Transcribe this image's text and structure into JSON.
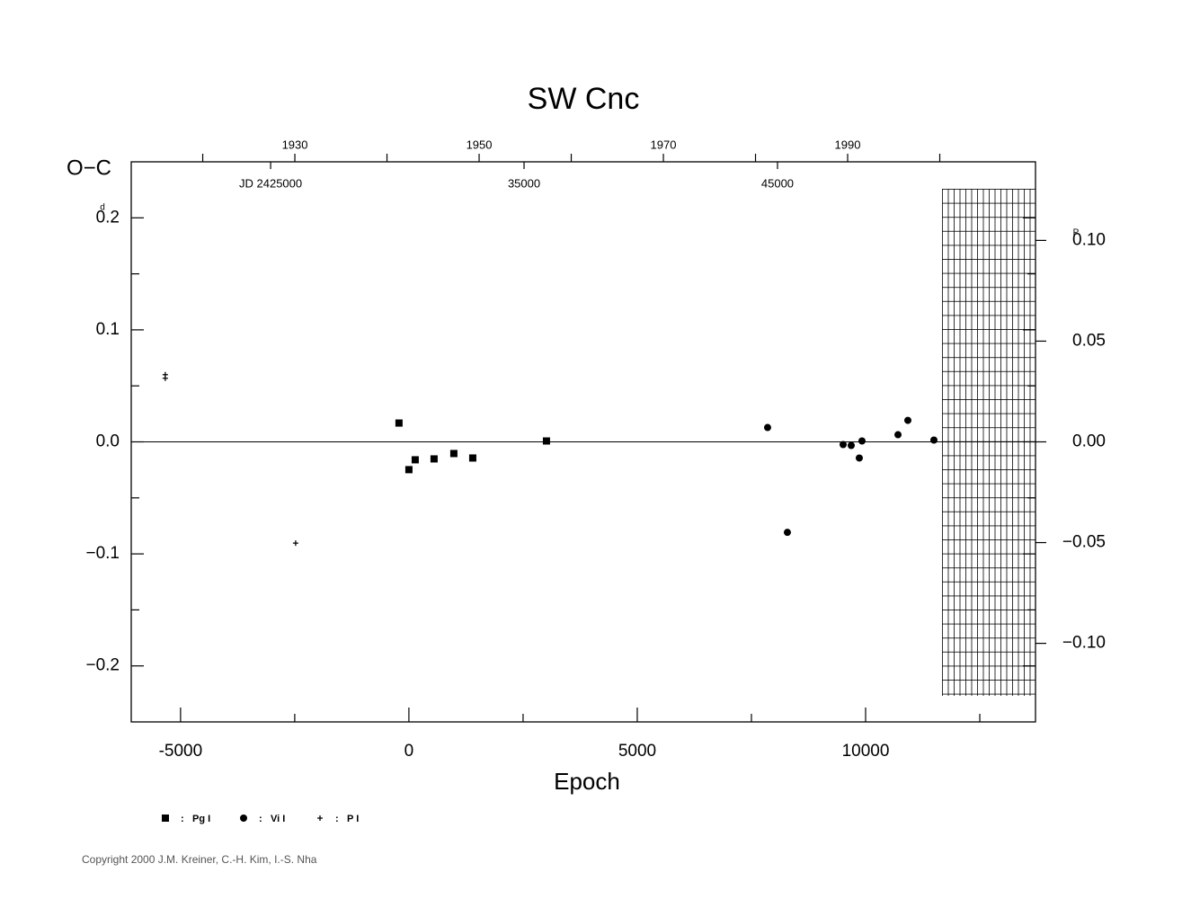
{
  "chart_data": {
    "type": "scatter",
    "title": "SW Cnc",
    "ylabel": "O−C",
    "y_unit": "d",
    "y2_unit": "P",
    "xlabel": "Epoch",
    "xlim": [
      -6080,
      13720
    ],
    "xticks": [
      -5000,
      0,
      5000,
      10000
    ],
    "xminor_ticks": [
      -2500,
      2500,
      7500,
      12500
    ],
    "ylim": [
      -0.25,
      0.25
    ],
    "yticks": [
      {
        "value": -0.2,
        "label": "−0.2"
      },
      {
        "value": -0.1,
        "label": "−0.1"
      },
      {
        "value": 0,
        "label": "0.0"
      },
      0.1,
      0.2
    ],
    "yminor_ticks": [
      -0.15,
      -0.05,
      0.05,
      0.15
    ],
    "y2lim": [
      -0.139,
      0.139
    ],
    "y2ticks": [
      {
        "value": -0.1,
        "label": "−0.10"
      },
      {
        "value": -0.05,
        "label": "−0.05"
      },
      {
        "value": 0,
        "label": "0.00"
      },
      {
        "value": 0.05,
        "label": "0.05"
      },
      {
        "value": 0.1,
        "label": "0.10"
      }
    ],
    "x2lim": [
      1912.24,
      2010.39
    ],
    "x2ticks": [
      1930,
      1950,
      1970,
      1990
    ],
    "x2minor_ticks": [
      1920,
      1940,
      1960,
      1980,
      2000
    ],
    "x3lim": [
      2419500,
      2455180
    ],
    "x3ticks": [
      {
        "value": 2425000,
        "label": "JD 2425000"
      },
      {
        "value": 2435000,
        "label": "35000"
      },
      {
        "value": 2445000,
        "label": "45000"
      }
    ],
    "reference_line": 0,
    "legend_separator": ":",
    "series": [
      {
        "name": "Pg I",
        "marker": "square",
        "color": "#000000",
        "x": [
          -217,
          0,
          138,
          551,
          984,
          1398,
          3012
        ],
        "values": [
          0.0168,
          -0.0248,
          -0.016,
          -0.0152,
          -0.0104,
          -0.0144,
          0.0008
        ]
      },
      {
        "name": "Vi I",
        "marker": "circle",
        "color": "#000000",
        "x": [
          7854,
          8287,
          9508,
          9685,
          9862,
          9921,
          10709,
          10925,
          11496
        ],
        "values": [
          0.0128,
          -0.0808,
          -0.0024,
          -0.0032,
          -0.0144,
          0.0008,
          0.0064,
          0.0192,
          0.0016
        ]
      },
      {
        "name": "P I",
        "marker": "plus",
        "color": "#000000",
        "x": [
          -5335,
          -5335,
          -2480
        ],
        "values": [
          0.06,
          0.0568,
          -0.0904
        ]
      }
    ],
    "copyright": "Copyright 2000 J.M. Kreiner, C.-H. Kim, I.-S. Nha"
  }
}
